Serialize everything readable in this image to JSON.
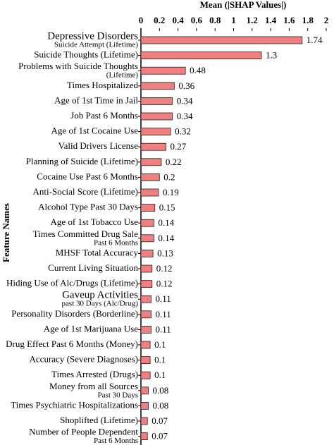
{
  "chart_data": {
    "type": "barh",
    "xlabel": "Mean (|SHAP Values|)",
    "ylabel": "Feature Names",
    "categories": [
      [
        "Depressive Disorders",
        "Suicide Attempt (Lifetime)"
      ],
      "Suicide Thoughts (Lifetime)",
      [
        "Problems with Suicide Thoughts",
        "(Lifetime)"
      ],
      "Times Hospitalized",
      "Age of 1st Time in Jail",
      "Job Past 6 Months",
      "Age of 1st Cocaine Use",
      "Valid Drivers License",
      "Planning of Suicide (Lifetime)",
      "Cocaine Use Past 6 Months",
      "Anti-Social Score (Lifetime)",
      "Alcohol Type Past 30 Days",
      "Age of 1st Tobacco Use",
      [
        "Times Committed Drug Sale",
        "Past 6 Months"
      ],
      "MHSF Total Accuracy",
      "Current Living Situation",
      "Hiding Use of Alc/Drugs (Lifetime)",
      [
        "Gaveup Activities",
        "past 30 Days (Alc/Drug)"
      ],
      "Personality Disorders (Borderline)",
      "Age of 1st Marijuana Use",
      "Drug Effect Past 6 Months (Money)",
      "Accuracy (Severe Diagnoses)",
      "Times Arrested (Drugs)",
      [
        "Money from all Sources",
        "Past 30 Days"
      ],
      "Times Psychiatric Hospitalizations",
      "Shoplifted (Lifetime)",
      [
        "Number of People Dependent",
        "Past 6 Months"
      ]
    ],
    "values": [
      1.74,
      1.3,
      0.48,
      0.36,
      0.34,
      0.34,
      0.32,
      0.27,
      0.22,
      0.2,
      0.19,
      0.15,
      0.14,
      0.14,
      0.13,
      0.12,
      0.12,
      0.11,
      0.11,
      0.11,
      0.1,
      0.1,
      0.1,
      0.08,
      0.08,
      0.07,
      0.07
    ],
    "color": "#f08080",
    "xlim": [
      0,
      2
    ],
    "xticks": [
      0,
      0.2,
      0.4,
      0.6,
      0.8,
      1,
      1.2,
      1.4,
      1.6,
      1.8,
      2
    ]
  }
}
